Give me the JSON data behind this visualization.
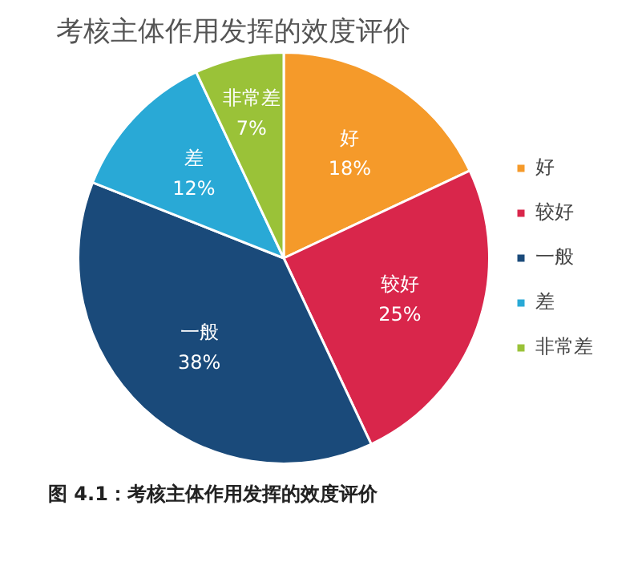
{
  "chart_data": {
    "type": "pie",
    "title": "考核主体作用发挥的效度评价",
    "categories": [
      "好",
      "较好",
      "一般",
      "差",
      "非常差"
    ],
    "values": [
      18,
      25,
      38,
      12,
      7
    ],
    "value_labels": [
      "18%",
      "25%",
      "38%",
      "12%",
      "7%"
    ],
    "colors": [
      "#f59a2a",
      "#d9264b",
      "#1a4a7a",
      "#29a9d6",
      "#9ac238"
    ],
    "legend": "right",
    "annotations": [
      "图 4.1：考核主体作用发挥的效度评价"
    ]
  }
}
